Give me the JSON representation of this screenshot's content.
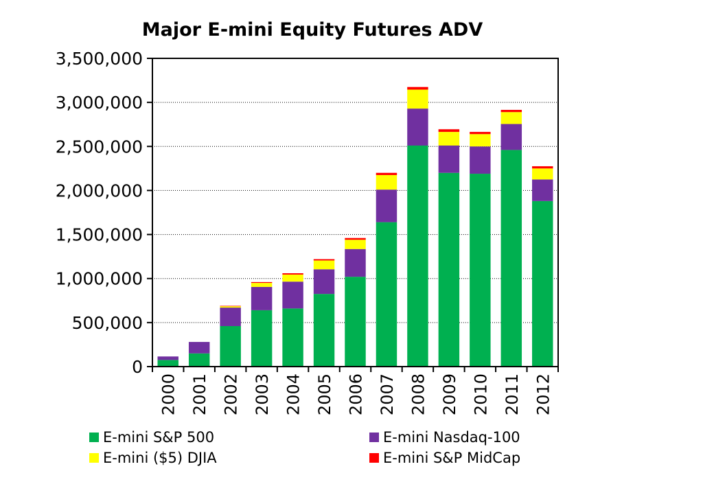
{
  "chart_data": {
    "type": "bar",
    "stacked": true,
    "title": "Major E-mini Equity Futures ADV",
    "xlabel": "",
    "ylabel": "",
    "ylim": [
      0,
      3500000
    ],
    "yticks": [
      0,
      500000,
      1000000,
      1500000,
      2000000,
      2500000,
      3000000,
      3500000
    ],
    "ytick_labels": [
      "0",
      "500,000",
      "1,000,000",
      "1,500,000",
      "2,000,000",
      "2,500,000",
      "3,000,000",
      "3,500,000"
    ],
    "grid": "horizontal dotted",
    "legend_position": "bottom",
    "categories": [
      "2000",
      "2001",
      "2002",
      "2003",
      "2004",
      "2005",
      "2006",
      "2007",
      "2008",
      "2009",
      "2010",
      "2011",
      "2012"
    ],
    "series": [
      {
        "name": "E-mini S&P 500",
        "color": "#00B050",
        "values": [
          75000,
          150000,
          460000,
          640000,
          660000,
          825000,
          1020000,
          1640000,
          2510000,
          2200000,
          2190000,
          2460000,
          1880000
        ]
      },
      {
        "name": "E-mini Nasdaq-100",
        "color": "#7030A0",
        "values": [
          40000,
          130000,
          210000,
          265000,
          305000,
          280000,
          315000,
          370000,
          420000,
          310000,
          310000,
          295000,
          245000
        ]
      },
      {
        "name": "E-mini ($5) DJIA",
        "color": "#FFFF00",
        "values": [
          0,
          0,
          15000,
          45000,
          80000,
          100000,
          105000,
          165000,
          215000,
          155000,
          140000,
          135000,
          125000
        ]
      },
      {
        "name": "E-mini S&P MidCap",
        "color": "#FF0000",
        "values": [
          0,
          0,
          5000,
          10000,
          15000,
          15000,
          20000,
          25000,
          30000,
          30000,
          25000,
          25000,
          25000
        ]
      }
    ]
  }
}
